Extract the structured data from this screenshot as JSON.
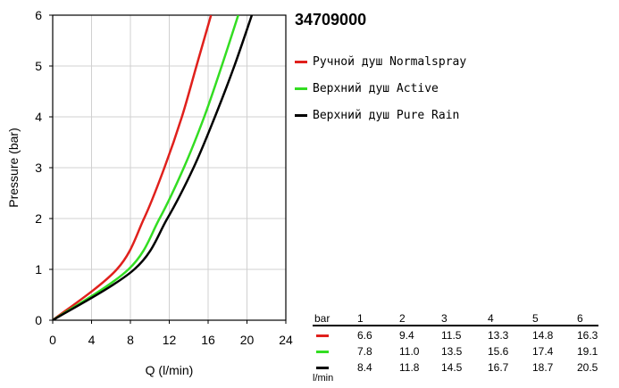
{
  "chart_data": {
    "type": "line",
    "title": "34709000",
    "xlabel": "Q (l/min)",
    "ylabel": "Pressure (bar)",
    "xlim": [
      0,
      24
    ],
    "ylim": [
      0,
      6
    ],
    "xticks": [
      0,
      4,
      8,
      12,
      16,
      20,
      24
    ],
    "yticks": [
      0,
      1,
      2,
      3,
      4,
      5,
      6
    ],
    "grid": true,
    "legend_position": "right",
    "series": [
      {
        "name": "Ручной душ Normalspray",
        "color": "#e0201c",
        "x": [
          0,
          6.6,
          9.4,
          11.5,
          13.3,
          14.8,
          16.3
        ],
        "y": [
          0,
          1,
          2,
          3,
          4,
          5,
          6
        ]
      },
      {
        "name": "Верхний душ Active",
        "color": "#33dd22",
        "x": [
          0,
          7.8,
          11.0,
          13.5,
          15.6,
          17.4,
          19.1
        ],
        "y": [
          0,
          1,
          2,
          3,
          4,
          5,
          6
        ]
      },
      {
        "name": "Верхний душ Pure Rain",
        "color": "#000000",
        "x": [
          0,
          8.4,
          11.8,
          14.5,
          16.7,
          18.7,
          20.5
        ],
        "y": [
          0,
          1,
          2,
          3,
          4,
          5,
          6
        ]
      }
    ]
  },
  "table": {
    "header_label": "bar",
    "unit_label": "l/min",
    "columns": [
      "1",
      "2",
      "3",
      "4",
      "5",
      "6"
    ],
    "rows": [
      {
        "color": "#e0201c",
        "values": [
          "6.6",
          "9.4",
          "11.5",
          "13.3",
          "14.8",
          "16.3"
        ]
      },
      {
        "color": "#33dd22",
        "values": [
          "7.8",
          "11.0",
          "13.5",
          "15.6",
          "17.4",
          "19.1"
        ]
      },
      {
        "color": "#000000",
        "values": [
          "8.4",
          "11.8",
          "14.5",
          "16.7",
          "18.7",
          "20.5"
        ]
      }
    ]
  }
}
